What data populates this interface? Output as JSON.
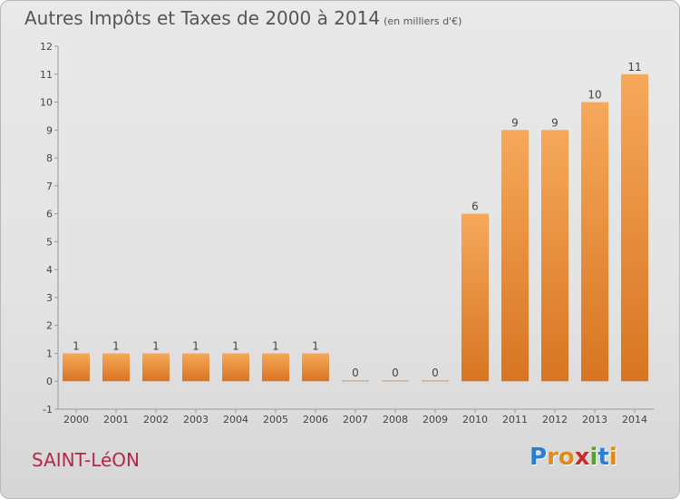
{
  "title": "Autres Impôts et Taxes de 2000 à 2014",
  "subtitle": "(en milliers d'€)",
  "town": "SAINT-LéON",
  "logo_letters": [
    "P",
    "r",
    "o",
    "x",
    "i",
    "t",
    "i"
  ],
  "logo_colors": [
    "#2a7fd0",
    "#e08a1a",
    "#e08a1a",
    "#cc2a2a",
    "#5aa02c",
    "#2a7fd0",
    "#e08a1a"
  ],
  "colors": {
    "bar_light": "#f6a85a",
    "bar_dark": "#d77522",
    "axis": "#999999",
    "text": "#444444"
  },
  "chart_data": {
    "type": "bar",
    "title": "Autres Impôts et Taxes de 2000 à 2014",
    "subtitle": "(en milliers d'€)",
    "categories": [
      "2000",
      "2001",
      "2002",
      "2003",
      "2004",
      "2005",
      "2006",
      "2007",
      "2008",
      "2009",
      "2010",
      "2011",
      "2012",
      "2013",
      "2014"
    ],
    "values": [
      1,
      1,
      1,
      1,
      1,
      1,
      1,
      0,
      0,
      0,
      6,
      9,
      9,
      10,
      11
    ],
    "labels": [
      "1",
      "1",
      "1",
      "1",
      "1",
      "1",
      "1",
      "0",
      "0",
      "0",
      "6",
      "9",
      "9",
      "10",
      "11"
    ],
    "ylim": [
      -1,
      12
    ],
    "yticks": [
      -1,
      0,
      1,
      2,
      3,
      4,
      5,
      6,
      7,
      8,
      9,
      10,
      11,
      12
    ],
    "grid": false,
    "xlabel": "",
    "ylabel": ""
  }
}
